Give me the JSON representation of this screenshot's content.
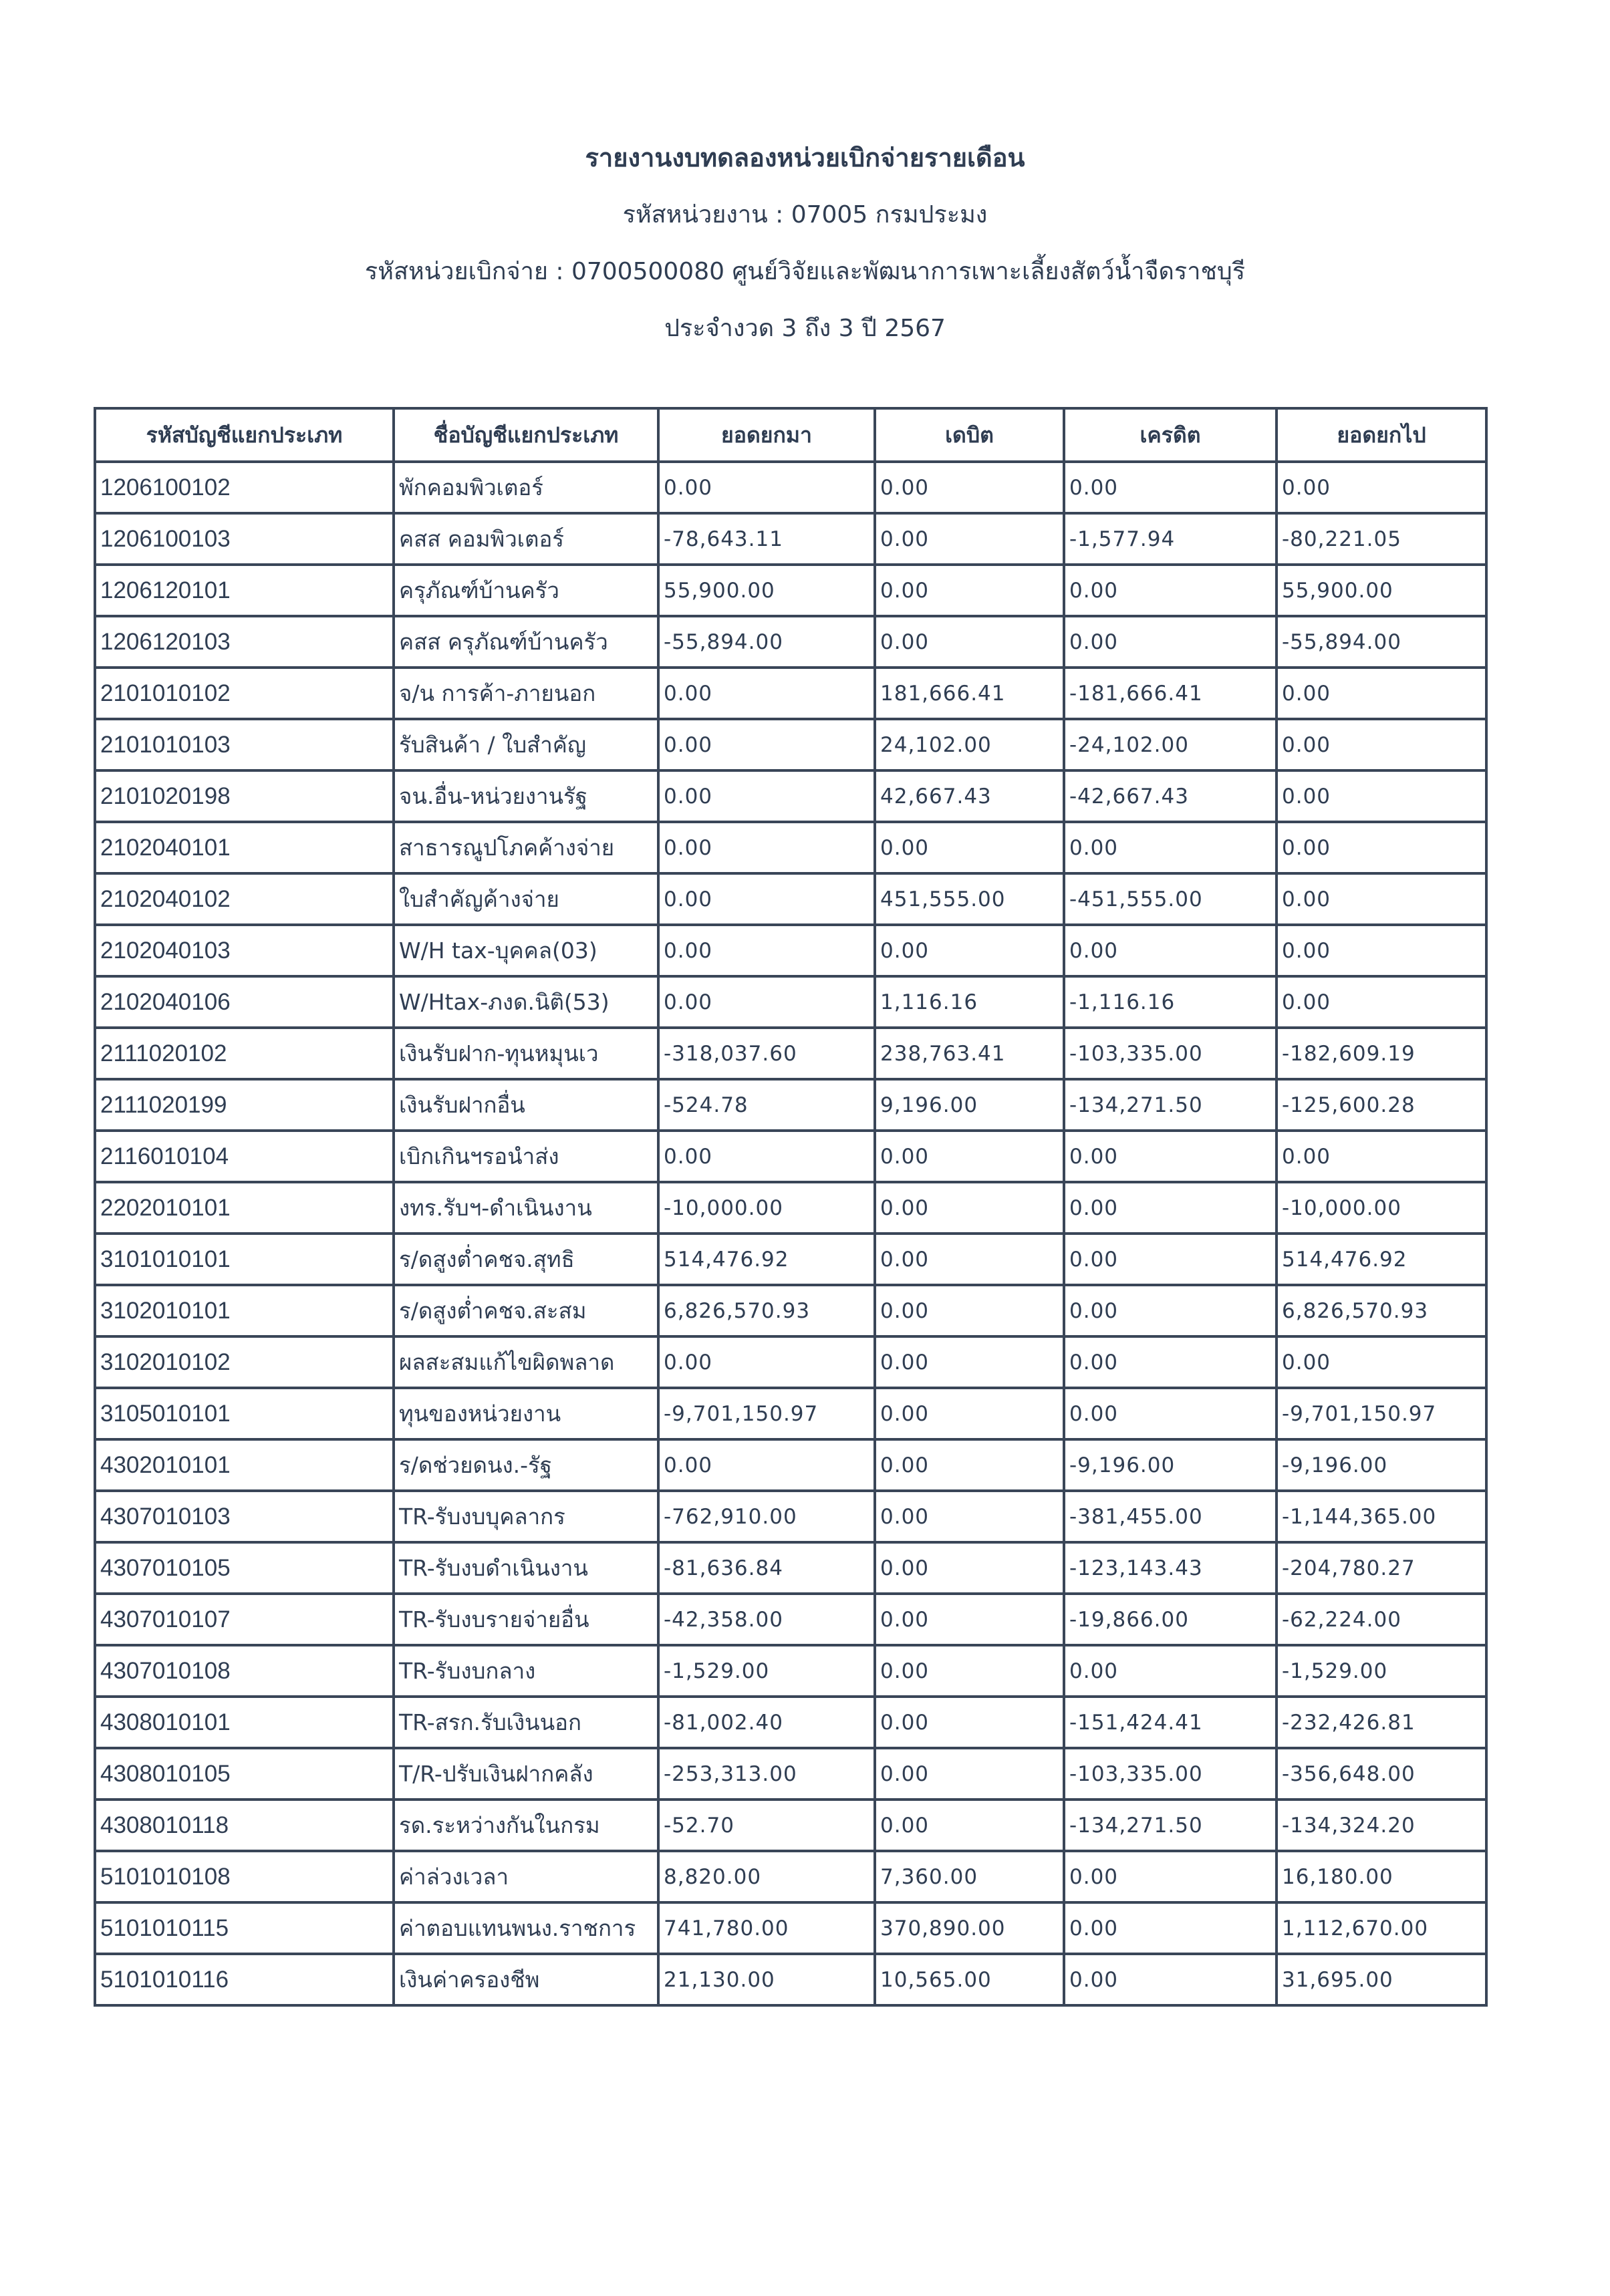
{
  "report": {
    "title": "รายงานงบทดลองหน่วยเบิกจ่ายรายเดือน",
    "agency_line": "รหัสหน่วยงาน : 07005 กรมประมง",
    "disbursing_unit_line": "รหัสหน่วยเบิกจ่าย : 0700500080 ศูนย์วิจัยและพัฒนาการเพาะเลี้ยงสัตว์น้ำจืดราชบุรี",
    "period_line": "ประจำงวด 3 ถึง 3 ปี 2567"
  },
  "table": {
    "headers": [
      "รหัสบัญชีแยกประเภท",
      "ชื่อบัญชีแยกประเภท",
      "ยอดยกมา",
      "เดบิต",
      "เครดิต",
      "ยอดยกไป"
    ],
    "rows": [
      [
        "1206100102",
        "พักคอมพิวเตอร์",
        "0.00",
        "0.00",
        "0.00",
        "0.00"
      ],
      [
        "1206100103",
        "คสส คอมพิวเตอร์",
        "-78,643.11",
        "0.00",
        "-1,577.94",
        "-80,221.05"
      ],
      [
        "1206120101",
        "ครุภัณฑ์บ้านครัว",
        "55,900.00",
        "0.00",
        "0.00",
        "55,900.00"
      ],
      [
        "1206120103",
        "คสส ครุภัณฑ์บ้านครัว",
        "-55,894.00",
        "0.00",
        "0.00",
        "-55,894.00"
      ],
      [
        "2101010102",
        "จ/น การค้า-ภายนอก",
        "0.00",
        "181,666.41",
        "-181,666.41",
        "0.00"
      ],
      [
        "2101010103",
        "รับสินค้า / ใบสำคัญ",
        "0.00",
        "24,102.00",
        "-24,102.00",
        "0.00"
      ],
      [
        "2101020198",
        "จน.อื่น-หน่วยงานรัฐ",
        "0.00",
        "42,667.43",
        "-42,667.43",
        "0.00"
      ],
      [
        "2102040101",
        "สาธารณูปโภคค้างจ่าย",
        "0.00",
        "0.00",
        "0.00",
        "0.00"
      ],
      [
        "2102040102",
        "ใบสำคัญค้างจ่าย",
        "0.00",
        "451,555.00",
        "-451,555.00",
        "0.00"
      ],
      [
        "2102040103",
        "W/H tax-บุคคล(03)",
        "0.00",
        "0.00",
        "0.00",
        "0.00"
      ],
      [
        "2102040106",
        "W/Htax-ภงด.นิติ(53)",
        "0.00",
        "1,116.16",
        "-1,116.16",
        "0.00"
      ],
      [
        "2111020102",
        "เงินรับฝาก-ทุนหมุนเว",
        "-318,037.60",
        "238,763.41",
        "-103,335.00",
        "-182,609.19"
      ],
      [
        "2111020199",
        "เงินรับฝากอื่น",
        "-524.78",
        "9,196.00",
        "-134,271.50",
        "-125,600.28"
      ],
      [
        "2116010104",
        "เบิกเกินฯรอนำส่ง",
        "0.00",
        "0.00",
        "0.00",
        "0.00"
      ],
      [
        "2202010101",
        "งทร.รับฯ-ดำเนินงาน",
        "-10,000.00",
        "0.00",
        "0.00",
        "-10,000.00"
      ],
      [
        "3101010101",
        "ร/ดสูงต่ำคชจ.สุทธิ",
        "514,476.92",
        "0.00",
        "0.00",
        "514,476.92"
      ],
      [
        "3102010101",
        "ร/ดสูงต่ำคชจ.สะสม",
        "6,826,570.93",
        "0.00",
        "0.00",
        "6,826,570.93"
      ],
      [
        "3102010102",
        "ผลสะสมแก้ไขผิดพลาด",
        "0.00",
        "0.00",
        "0.00",
        "0.00"
      ],
      [
        "3105010101",
        "ทุนของหน่วยงาน",
        "-9,701,150.97",
        "0.00",
        "0.00",
        "-9,701,150.97"
      ],
      [
        "4302010101",
        "ร/ดช่วยดนง.-รัฐ",
        "0.00",
        "0.00",
        "-9,196.00",
        "-9,196.00"
      ],
      [
        "4307010103",
        "TR-รับงบบุคลากร",
        "-762,910.00",
        "0.00",
        "-381,455.00",
        "-1,144,365.00"
      ],
      [
        "4307010105",
        "TR-รับงบดำเนินงาน",
        "-81,636.84",
        "0.00",
        "-123,143.43",
        "-204,780.27"
      ],
      [
        "4307010107",
        "TR-รับงบรายจ่ายอื่น",
        "-42,358.00",
        "0.00",
        "-19,866.00",
        "-62,224.00"
      ],
      [
        "4307010108",
        "TR-รับงบกลาง",
        "-1,529.00",
        "0.00",
        "0.00",
        "-1,529.00"
      ],
      [
        "4308010101",
        "TR-สรก.รับเงินนอก",
        "-81,002.40",
        "0.00",
        "-151,424.41",
        "-232,426.81"
      ],
      [
        "4308010105",
        "T/R-ปรับเงินฝากคลัง",
        "-253,313.00",
        "0.00",
        "-103,335.00",
        "-356,648.00"
      ],
      [
        "4308010118",
        "รด.ระหว่างกันในกรม",
        "-52.70",
        "0.00",
        "-134,271.50",
        "-134,324.20"
      ],
      [
        "5101010108",
        "ค่าล่วงเวลา",
        "8,820.00",
        "7,360.00",
        "0.00",
        "16,180.00"
      ],
      [
        "5101010115",
        "ค่าตอบแทนพนง.ราชการ",
        "741,780.00",
        "370,890.00",
        "0.00",
        "1,112,670.00"
      ],
      [
        "5101010116",
        "เงินค่าครองชีพ",
        "21,130.00",
        "10,565.00",
        "0.00",
        "31,695.00"
      ]
    ]
  }
}
